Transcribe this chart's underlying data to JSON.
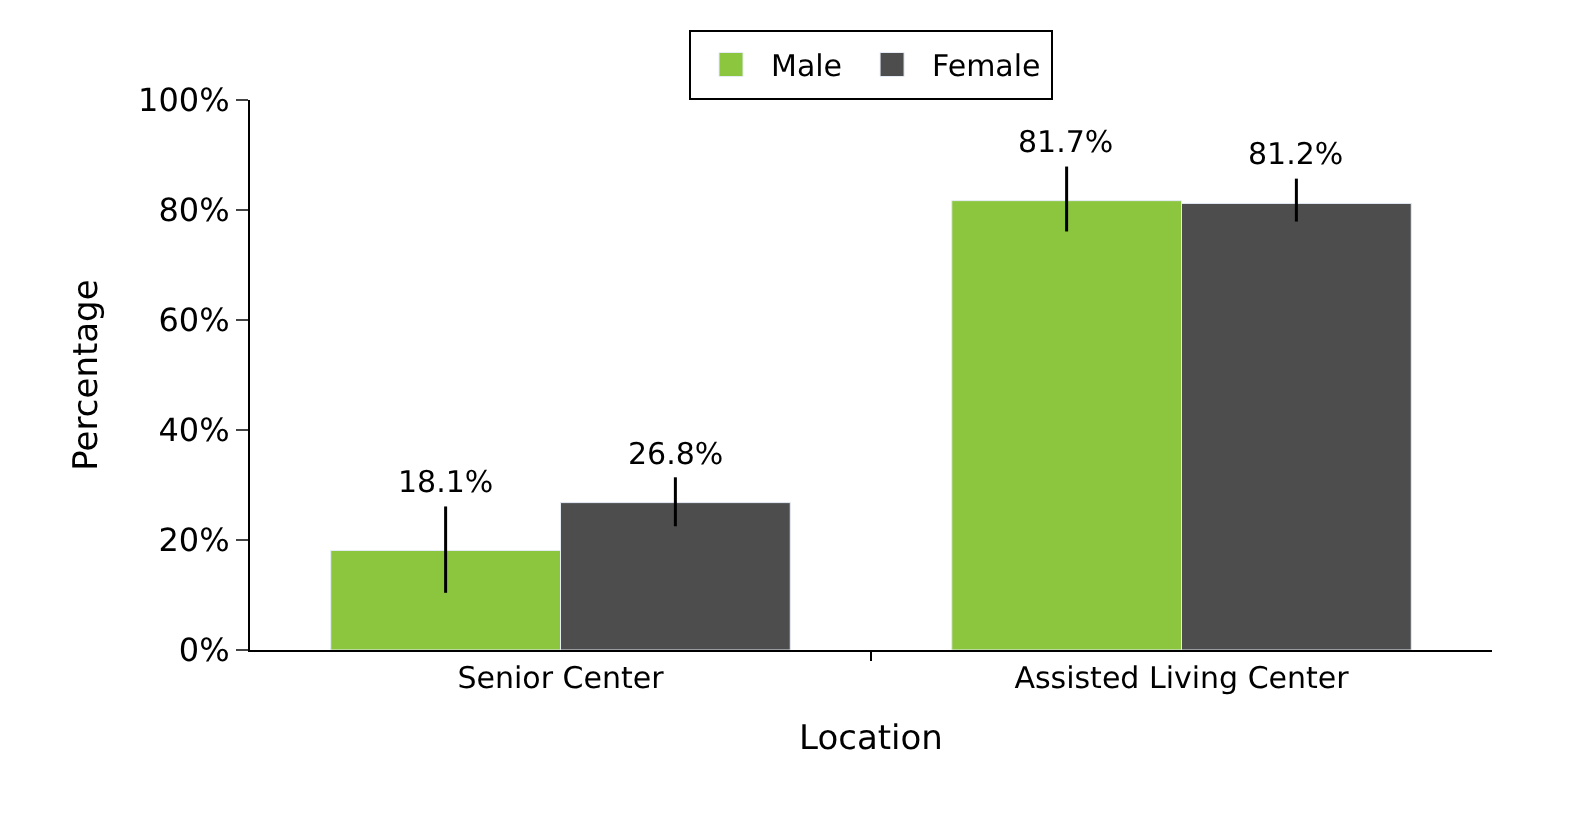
{
  "chart_data": {
    "type": "bar",
    "xlabel": "Location",
    "ylabel": "Percentage",
    "categories": [
      "Senior Center",
      "Assisted Living Center"
    ],
    "series": [
      {
        "name": "Male",
        "color": "#8cc63f",
        "values": [
          18.1,
          81.7
        ],
        "errors": [
          [
            10.4,
            26.1
          ],
          [
            76.1,
            87.9
          ]
        ],
        "value_labels": [
          "18.1%",
          "81.7%"
        ]
      },
      {
        "name": "Female",
        "color": "#4d4d4d",
        "values": [
          26.8,
          81.2
        ],
        "errors": [
          [
            22.5,
            31.4
          ],
          [
            77.9,
            85.7
          ]
        ],
        "value_labels": [
          "26.8%",
          "81.2%"
        ]
      }
    ],
    "ylim": [
      0,
      100
    ],
    "yticks": [
      {
        "value": 0,
        "label": "0%"
      },
      {
        "value": 20,
        "label": "20%"
      },
      {
        "value": 40,
        "label": "40%"
      },
      {
        "value": 60,
        "label": "60%"
      },
      {
        "value": 80,
        "label": "80%"
      },
      {
        "value": 100,
        "label": "100%"
      }
    ],
    "legend": "top"
  }
}
